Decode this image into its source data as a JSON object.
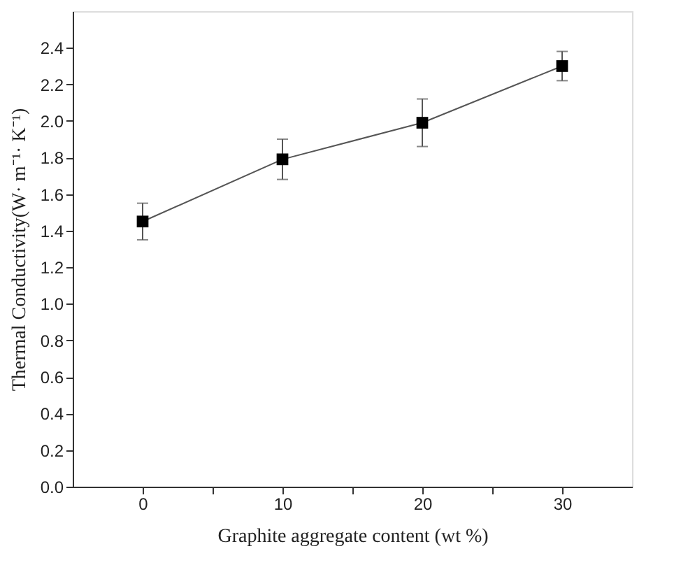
{
  "chart_data": {
    "type": "line",
    "xlabel": "Graphite aggregate content (wt %)",
    "ylabel": "Thermal Conductivity(W· m⁻¹· K⁻¹)",
    "x": [
      0,
      10,
      20,
      30
    ],
    "series": [
      {
        "color": "#000000",
        "values": [
          1.45,
          1.79,
          1.99,
          2.3
        ],
        "errors": [
          [
            1.35,
            1.55
          ],
          [
            1.68,
            1.9
          ],
          [
            1.86,
            2.12
          ],
          [
            2.22,
            2.38
          ]
        ]
      }
    ],
    "xlim": [
      -5,
      35
    ],
    "ylim": [
      0,
      2.6
    ],
    "xticks": [
      0,
      {
        "value": 5,
        "label": null
      },
      10,
      {
        "value": 15,
        "label": null
      },
      20,
      {
        "value": 25,
        "label": null
      },
      30
    ],
    "yticks": [
      {
        "value": 0,
        "label": "0.0"
      },
      0.2,
      0.4,
      0.6,
      0.8,
      {
        "value": 1,
        "label": "1.0"
      },
      1.2,
      1.4,
      1.6,
      1.8,
      {
        "value": 2,
        "label": "2.0"
      },
      2.2,
      2.4
    ],
    "marker": "square",
    "line_style": "solid",
    "grid": false
  }
}
